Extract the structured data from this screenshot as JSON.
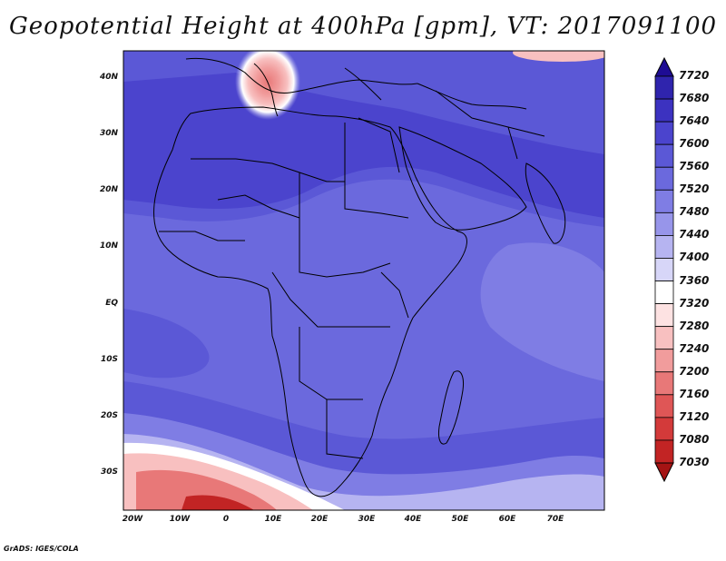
{
  "title": "Geopotential Height at 400hPa [gpm], VT: 2017091100",
  "footer": "GrADS: IGES/COLA",
  "lat_labels": [
    "40N",
    "30N",
    "20N",
    "10N",
    "EQ",
    "10S",
    "20S",
    "30S"
  ],
  "lon_labels": [
    "20W",
    "10W",
    "0",
    "10E",
    "20E",
    "30E",
    "40E",
    "50E",
    "60E",
    "70E"
  ],
  "colorbar": {
    "labels": [
      "7720",
      "7680",
      "7640",
      "7600",
      "7560",
      "7520",
      "7480",
      "7440",
      "7400",
      "7360",
      "7320",
      "7280",
      "7240",
      "7200",
      "7160",
      "7120",
      "7080",
      "7030"
    ],
    "colors": [
      "#1e0c94",
      "#2f24ad",
      "#3c32c0",
      "#4b44cd",
      "#5b58d6",
      "#6b69dd",
      "#7f7de4",
      "#9795ea",
      "#b6b4f1",
      "#d7d6f8",
      "#ffffff",
      "#fde2e2",
      "#f8c0c0",
      "#f19c9c",
      "#e87878",
      "#df5656",
      "#d33a3a",
      "#c22424",
      "#a51414"
    ]
  },
  "map": {
    "colors": {
      "deep": "#4b44cd",
      "mid": "#5b58d6",
      "base": "#6b69dd",
      "light": "#7f7de4",
      "pale": "#b6b4f1",
      "white": "#ffffff",
      "pink": "#f8c0c0",
      "red": "#e87878",
      "darkred": "#c22424",
      "border": "#000000"
    }
  }
}
